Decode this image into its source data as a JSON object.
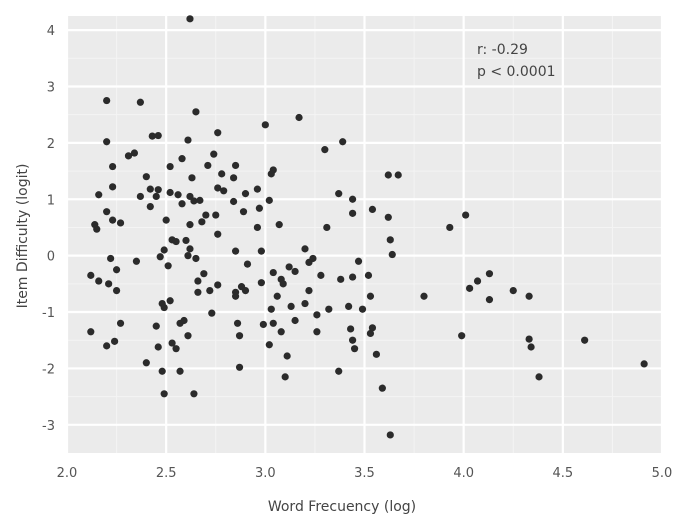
{
  "chart_data": {
    "type": "scatter",
    "title": "",
    "xlabel": "Word Frecuency (log)",
    "ylabel": "Item Difficulty (logit)",
    "xlim": [
      2.0,
      5.0
    ],
    "ylim": [
      -3.5,
      4.25
    ],
    "xticks": [
      "2.0",
      "2.5",
      "3.0",
      "3.5",
      "4.0",
      "4.5",
      "5.0"
    ],
    "yticks": [
      "-3",
      "-2",
      "-1",
      "0",
      "1",
      "2",
      "3",
      "4"
    ],
    "grid": true,
    "background": "#ebebeb",
    "point_color": "#2b2b2b",
    "annotations": [
      "r: -0.29",
      "p < 0.0001"
    ],
    "points": [
      [
        2.62,
        4.2
      ],
      [
        2.2,
        2.75
      ],
      [
        2.37,
        2.72
      ],
      [
        2.65,
        2.55
      ],
      [
        3.0,
        2.32
      ],
      [
        3.17,
        2.45
      ],
      [
        2.43,
        2.12
      ],
      [
        2.46,
        2.13
      ],
      [
        2.76,
        2.18
      ],
      [
        2.2,
        2.02
      ],
      [
        2.61,
        2.05
      ],
      [
        3.39,
        2.02
      ],
      [
        2.31,
        1.77
      ],
      [
        2.34,
        1.82
      ],
      [
        2.58,
        1.72
      ],
      [
        2.74,
        1.8
      ],
      [
        3.3,
        1.88
      ],
      [
        2.23,
        1.58
      ],
      [
        2.52,
        1.58
      ],
      [
        2.71,
        1.6
      ],
      [
        2.85,
        1.6
      ],
      [
        3.04,
        1.52
      ],
      [
        2.4,
        1.4
      ],
      [
        2.63,
        1.38
      ],
      [
        2.78,
        1.45
      ],
      [
        2.84,
        1.38
      ],
      [
        3.03,
        1.45
      ],
      [
        3.62,
        1.43
      ],
      [
        3.67,
        1.43
      ],
      [
        2.23,
        1.22
      ],
      [
        2.42,
        1.18
      ],
      [
        2.46,
        1.17
      ],
      [
        2.52,
        1.12
      ],
      [
        2.56,
        1.08
      ],
      [
        2.62,
        1.05
      ],
      [
        2.76,
        1.2
      ],
      [
        2.79,
        1.15
      ],
      [
        2.9,
        1.1
      ],
      [
        2.96,
        1.18
      ],
      [
        3.02,
        0.98
      ],
      [
        3.37,
        1.1
      ],
      [
        3.44,
        1.0
      ],
      [
        2.16,
        1.08
      ],
      [
        2.37,
        1.05
      ],
      [
        2.45,
        1.05
      ],
      [
        2.64,
        0.97
      ],
      [
        2.67,
        0.98
      ],
      [
        2.84,
        0.96
      ],
      [
        2.42,
        0.87
      ],
      [
        2.2,
        0.78
      ],
      [
        2.58,
        0.92
      ],
      [
        2.7,
        0.72
      ],
      [
        2.75,
        0.72
      ],
      [
        2.89,
        0.78
      ],
      [
        2.97,
        0.84
      ],
      [
        3.44,
        0.75
      ],
      [
        3.54,
        0.82
      ],
      [
        3.62,
        0.68
      ],
      [
        4.01,
        0.72
      ],
      [
        2.14,
        0.55
      ],
      [
        2.15,
        0.47
      ],
      [
        2.23,
        0.63
      ],
      [
        2.27,
        0.58
      ],
      [
        2.5,
        0.63
      ],
      [
        2.62,
        0.55
      ],
      [
        2.68,
        0.6
      ],
      [
        2.76,
        0.38
      ],
      [
        2.96,
        0.5
      ],
      [
        3.07,
        0.55
      ],
      [
        3.31,
        0.5
      ],
      [
        3.93,
        0.5
      ],
      [
        2.53,
        0.28
      ],
      [
        2.55,
        0.25
      ],
      [
        2.6,
        0.27
      ],
      [
        2.62,
        0.12
      ],
      [
        2.47,
        -0.02
      ],
      [
        2.49,
        0.1
      ],
      [
        2.22,
        -0.05
      ],
      [
        2.25,
        -0.25
      ],
      [
        2.35,
        -0.1
      ],
      [
        2.51,
        -0.18
      ],
      [
        2.61,
        0.0
      ],
      [
        2.65,
        -0.05
      ],
      [
        2.85,
        0.08
      ],
      [
        2.91,
        -0.15
      ],
      [
        2.98,
        0.08
      ],
      [
        3.04,
        -0.3
      ],
      [
        3.08,
        -0.42
      ],
      [
        3.12,
        -0.2
      ],
      [
        3.15,
        -0.28
      ],
      [
        3.2,
        0.12
      ],
      [
        3.22,
        -0.12
      ],
      [
        3.24,
        -0.05
      ],
      [
        3.28,
        -0.35
      ],
      [
        3.44,
        -0.38
      ],
      [
        3.47,
        -0.1
      ],
      [
        3.52,
        -0.35
      ],
      [
        3.63,
        0.28
      ],
      [
        3.64,
        0.02
      ],
      [
        3.8,
        -0.72
      ],
      [
        4.03,
        -0.58
      ],
      [
        4.07,
        -0.45
      ],
      [
        4.13,
        -0.32
      ],
      [
        4.13,
        -0.78
      ],
      [
        4.25,
        -0.62
      ],
      [
        4.33,
        -0.72
      ],
      [
        2.12,
        -0.35
      ],
      [
        2.16,
        -0.45
      ],
      [
        2.21,
        -0.5
      ],
      [
        2.25,
        -0.62
      ],
      [
        2.48,
        -0.85
      ],
      [
        2.49,
        -0.92
      ],
      [
        2.52,
        -0.8
      ],
      [
        2.66,
        -0.45
      ],
      [
        2.66,
        -0.65
      ],
      [
        2.69,
        -0.32
      ],
      [
        2.72,
        -0.62
      ],
      [
        2.76,
        -0.52
      ],
      [
        2.85,
        -0.65
      ],
      [
        2.85,
        -0.72
      ],
      [
        2.88,
        -0.55
      ],
      [
        2.9,
        -0.62
      ],
      [
        2.98,
        -0.48
      ],
      [
        3.03,
        -0.95
      ],
      [
        3.06,
        -0.72
      ],
      [
        3.09,
        -0.5
      ],
      [
        3.13,
        -0.9
      ],
      [
        3.2,
        -0.85
      ],
      [
        3.22,
        -0.62
      ],
      [
        3.26,
        -1.05
      ],
      [
        3.32,
        -0.95
      ],
      [
        3.38,
        -0.42
      ],
      [
        3.42,
        -0.9
      ],
      [
        3.49,
        -0.95
      ],
      [
        3.53,
        -0.72
      ],
      [
        2.12,
        -1.35
      ],
      [
        2.2,
        -1.6
      ],
      [
        2.24,
        -1.52
      ],
      [
        2.27,
        -1.2
      ],
      [
        2.45,
        -1.25
      ],
      [
        2.46,
        -1.62
      ],
      [
        2.53,
        -1.55
      ],
      [
        2.55,
        -1.65
      ],
      [
        2.57,
        -1.2
      ],
      [
        2.59,
        -1.15
      ],
      [
        2.61,
        -1.42
      ],
      [
        2.73,
        -1.02
      ],
      [
        2.86,
        -1.2
      ],
      [
        2.87,
        -1.42
      ],
      [
        2.99,
        -1.22
      ],
      [
        3.02,
        -1.58
      ],
      [
        3.04,
        -1.2
      ],
      [
        3.08,
        -1.35
      ],
      [
        3.11,
        -1.78
      ],
      [
        3.15,
        -1.15
      ],
      [
        3.26,
        -1.35
      ],
      [
        3.43,
        -1.3
      ],
      [
        3.44,
        -1.5
      ],
      [
        3.45,
        -1.65
      ],
      [
        3.53,
        -1.38
      ],
      [
        3.54,
        -1.28
      ],
      [
        3.56,
        -1.75
      ],
      [
        3.99,
        -1.42
      ],
      [
        4.33,
        -1.48
      ],
      [
        4.34,
        -1.62
      ],
      [
        4.61,
        -1.5
      ],
      [
        2.4,
        -1.9
      ],
      [
        2.48,
        -2.05
      ],
      [
        2.49,
        -2.45
      ],
      [
        2.57,
        -2.05
      ],
      [
        2.64,
        -2.45
      ],
      [
        2.87,
        -1.98
      ],
      [
        3.1,
        -2.15
      ],
      [
        3.37,
        -2.05
      ],
      [
        3.59,
        -2.35
      ],
      [
        3.63,
        -3.18
      ],
      [
        4.38,
        -2.15
      ],
      [
        4.91,
        -1.92
      ]
    ]
  }
}
